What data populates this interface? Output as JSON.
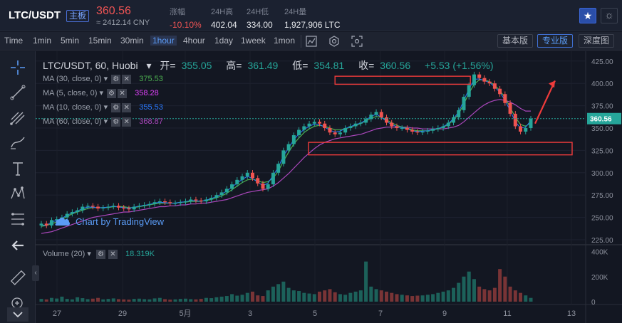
{
  "ticker": {
    "pair": "LTC/USDT",
    "market_badge": "主板",
    "price": "360.56",
    "cny": "≈ 2412.14 CNY",
    "stats": [
      {
        "label": "涨幅",
        "value": "-10.10%",
        "negative": true
      },
      {
        "label": "24H高",
        "value": "402.04",
        "negative": false
      },
      {
        "label": "24H低",
        "value": "334.00",
        "negative": false
      },
      {
        "label": "24H量",
        "value": "1,927,906 LTC",
        "negative": false
      }
    ]
  },
  "toolbar": {
    "intervals": [
      "Time",
      "1min",
      "5min",
      "15min",
      "30min",
      "1hour",
      "4hour",
      "1day",
      "1week",
      "1mon"
    ],
    "active_interval": "1hour",
    "views": [
      "基本版",
      "专业版",
      "深度图"
    ],
    "active_view": "专业版"
  },
  "legend": {
    "title": "LTC/USDT, 60, Huobi",
    "open_key": "开=",
    "open": "355.05",
    "high_key": "高=",
    "high": "361.49",
    "low_key": "低=",
    "low": "354.81",
    "close_key": "收=",
    "close": "360.56",
    "change": "+5.53 (+1.56%)"
  },
  "indicators": [
    {
      "label": "MA (30, close, 0)",
      "value": "375.53",
      "color": "#4caf50"
    },
    {
      "label": "MA (5, close, 0)",
      "value": "358.28",
      "color": "#e040fb"
    },
    {
      "label": "MA (10, close, 0)",
      "value": "355.53",
      "color": "#2979ff"
    },
    {
      "label": "MA (60, close, 0)",
      "value": "368.87",
      "color": "#ab47bc"
    }
  ],
  "volume": {
    "label": "Volume (20)",
    "value": "18.319K"
  },
  "watermark": "Chart by TradingView",
  "chart_data": {
    "type": "candlestick",
    "price_axis_ticks": [
      "425.00",
      "400.00",
      "375.00",
      "350.00",
      "325.00",
      "300.00",
      "275.00",
      "250.00",
      "225.00"
    ],
    "price_range": [
      221,
      432
    ],
    "last_price_label": "360.56",
    "last_price": 360.56,
    "volume_axis_ticks": [
      "400K",
      "200K",
      "0"
    ],
    "volume_range": [
      0,
      420
    ],
    "x_labels": [
      "27",
      "29",
      "5月",
      "3",
      "5",
      "7",
      "9",
      "11",
      "13"
    ],
    "closes": [
      243,
      241,
      247,
      248,
      250,
      254,
      256,
      258,
      262,
      263,
      262,
      260,
      261,
      262,
      263,
      261,
      260,
      259,
      262,
      263,
      264,
      265,
      267,
      268,
      267,
      266,
      266,
      267,
      268,
      270,
      269,
      268,
      270,
      272,
      275,
      278,
      282,
      287,
      292,
      296,
      300,
      294,
      288,
      282,
      287,
      300,
      310,
      325,
      332,
      342,
      348,
      352,
      355,
      357,
      355,
      350,
      345,
      343,
      345,
      350,
      352,
      355,
      356,
      360,
      365,
      368,
      362,
      356,
      352,
      350,
      350,
      348,
      346,
      345,
      346,
      347,
      349,
      350,
      352,
      356,
      362,
      370,
      385,
      398,
      410,
      406,
      402,
      400,
      394,
      388,
      378,
      366,
      352,
      346,
      350,
      360.56
    ],
    "ma_smooth": [
      240,
      241,
      243,
      245,
      248,
      251,
      254,
      256,
      258,
      260,
      261,
      261,
      261,
      261,
      262,
      262,
      262,
      261,
      261,
      262,
      263,
      264,
      265,
      266,
      266,
      266,
      266,
      267,
      267,
      268,
      268,
      268,
      269,
      270,
      272,
      274,
      277,
      281,
      285,
      289,
      292,
      293,
      291,
      289,
      290,
      294,
      302,
      313,
      323,
      332,
      339,
      345,
      349,
      352,
      353,
      352,
      350,
      348,
      348,
      349,
      351,
      353,
      355,
      358,
      361,
      363,
      362,
      359,
      356,
      353,
      351,
      350,
      348,
      347,
      347,
      347,
      348,
      349,
      351,
      354,
      359,
      366,
      377,
      389,
      399,
      404,
      404,
      402,
      398,
      392,
      384,
      373,
      362,
      354,
      352,
      356
    ],
    "ma_slow": [
      232,
      233,
      234,
      236,
      238,
      240,
      242,
      244,
      246,
      248,
      250,
      251,
      252,
      253,
      254,
      255,
      256,
      256,
      257,
      258,
      259,
      260,
      261,
      262,
      262,
      263,
      263,
      264,
      264,
      265,
      265,
      266,
      266,
      267,
      268,
      269,
      270,
      272,
      274,
      276,
      278,
      279,
      280,
      281,
      282,
      285,
      289,
      294,
      299,
      305,
      311,
      317,
      322,
      327,
      331,
      334,
      336,
      338,
      339,
      340,
      341,
      342,
      343,
      345,
      347,
      349,
      350,
      351,
      351,
      351,
      351,
      351,
      350,
      350,
      349,
      349,
      349,
      349,
      349,
      350,
      351,
      353,
      357,
      362,
      367,
      372,
      376,
      379,
      381,
      382,
      381,
      379,
      376,
      372,
      369,
      369
    ],
    "volumes": [
      22,
      18,
      30,
      25,
      40,
      22,
      18,
      35,
      28,
      20,
      24,
      30,
      18,
      22,
      26,
      20,
      18,
      16,
      22,
      24,
      20,
      18,
      26,
      30,
      20,
      16,
      18,
      22,
      24,
      20,
      18,
      22,
      30,
      28,
      35,
      40,
      45,
      60,
      48,
      55,
      70,
      80,
      50,
      45,
      90,
      120,
      140,
      160,
      110,
      90,
      85,
      70,
      65,
      60,
      80,
      90,
      100,
      75,
      60,
      55,
      70,
      80,
      90,
      320,
      120,
      100,
      90,
      80,
      70,
      60,
      55,
      50,
      45,
      48,
      50,
      55,
      60,
      70,
      80,
      90,
      110,
      150,
      200,
      240,
      180,
      120,
      100,
      90,
      110,
      260,
      200,
      120,
      90,
      70,
      50,
      30
    ],
    "annotations": [
      "upper resistance box near 405",
      "lower support box near 327",
      "red arrow pointing up toward 405"
    ]
  }
}
